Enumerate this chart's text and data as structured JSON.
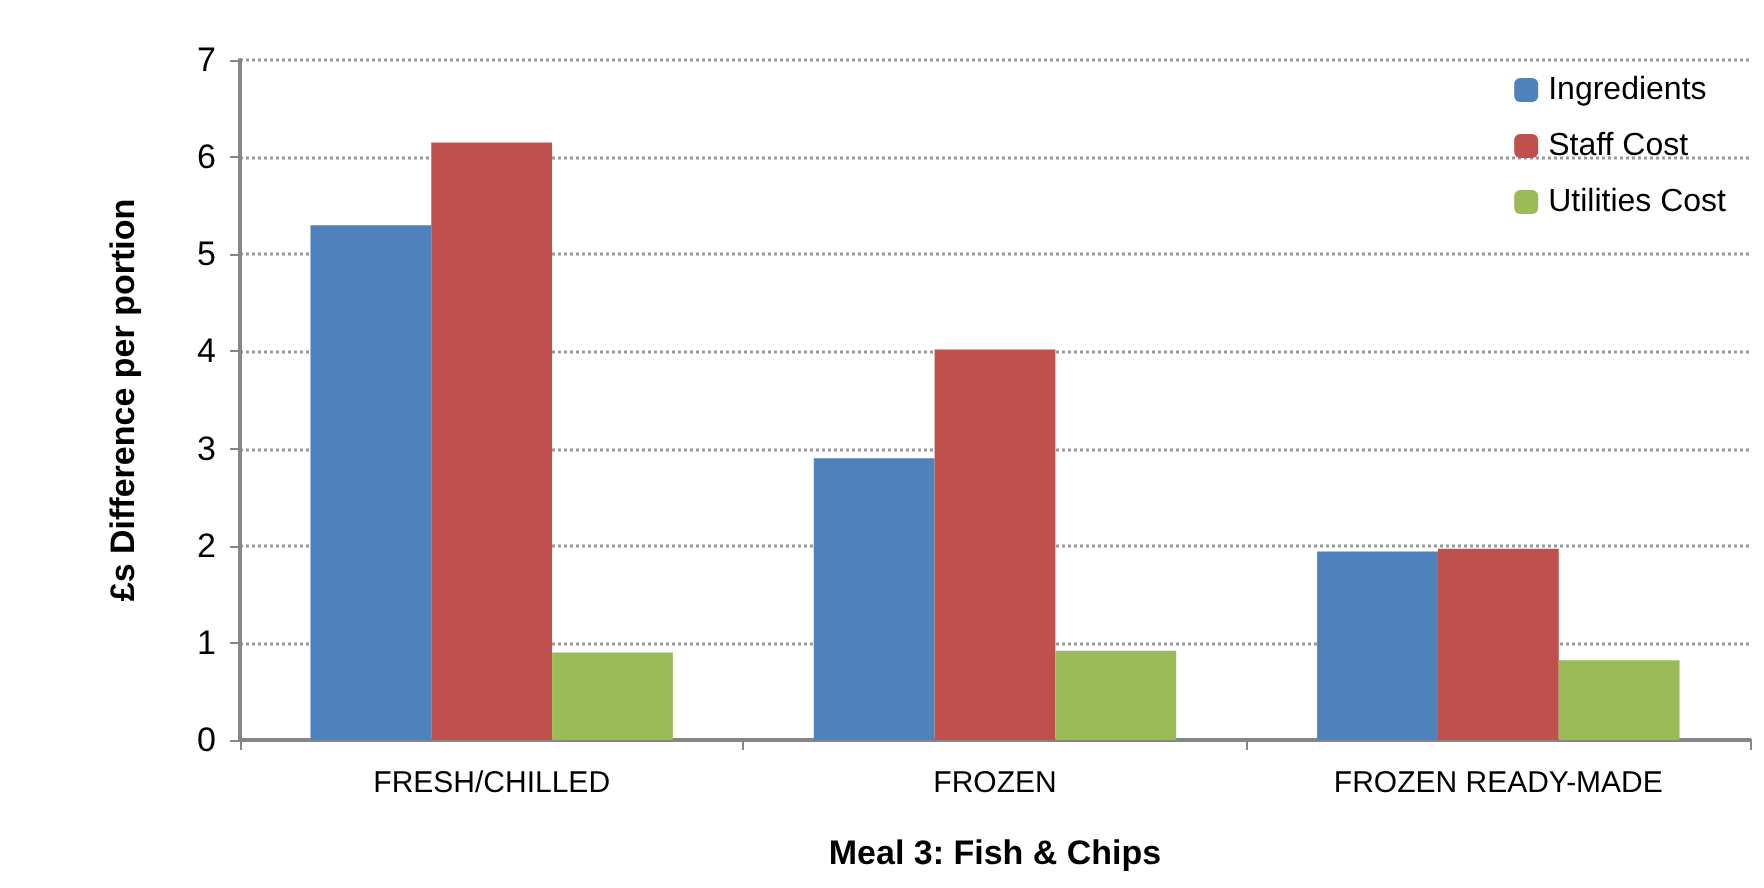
{
  "chart_data": {
    "type": "bar",
    "xlabel": "Meal 3: Fish & Chips",
    "ylabel": "£s Difference per portion",
    "categories": [
      "FRESH/CHILLED",
      "FROZEN",
      "FROZEN READY-MADE"
    ],
    "series": [
      {
        "name": "Ingredients",
        "color": "#4f81bd",
        "values": [
          5.3,
          2.9,
          1.94
        ]
      },
      {
        "name": "Staff Cost",
        "color": "#c0504d",
        "values": [
          6.15,
          4.02,
          1.97
        ]
      },
      {
        "name": "Utilities Cost",
        "color": "#9bbb59",
        "values": [
          0.9,
          0.92,
          0.82
        ]
      }
    ],
    "ylim": [
      0,
      7
    ],
    "yticks": [
      0,
      1,
      2,
      3,
      4,
      5,
      6,
      7
    ],
    "grid": "y",
    "legend": "top right"
  }
}
